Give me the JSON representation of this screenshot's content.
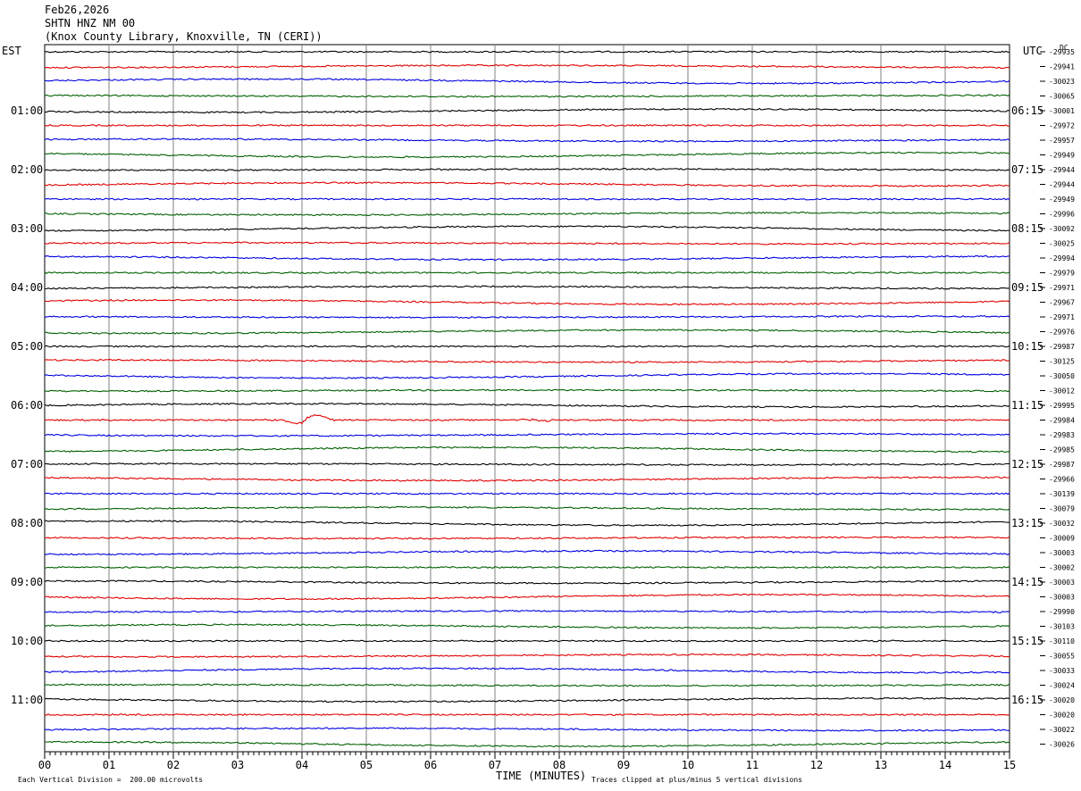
{
  "header": {
    "date": "Feb26,2026",
    "station": "SHTN HNZ NM 00",
    "location": "(Knox County Library, Knoxville, TN (CERI))"
  },
  "left_zone": "EST",
  "right_zone": "UTC",
  "dc_label": "DC",
  "footer": {
    "scale_note": "Each Vertical Division =  200.00 microvolts",
    "xlabel": "TIME (MINUTES)",
    "clip_note": "Traces clipped at plus/minus 5 vertical divisions"
  },
  "chart_data": {
    "type": "line",
    "xlabel": "TIME (MINUTES)",
    "xlim": [
      0,
      15
    ],
    "x_ticks": [
      "00",
      "01",
      "02",
      "03",
      "04",
      "05",
      "06",
      "07",
      "08",
      "09",
      "10",
      "11",
      "12",
      "13",
      "14",
      "15"
    ],
    "trace_colors": [
      "#000000",
      "#e00000",
      "#0000e0",
      "#006000"
    ],
    "left_hour_labels": [
      "01:00",
      "02:00",
      "03:00",
      "04:00",
      "05:00",
      "06:00",
      "07:00",
      "08:00",
      "09:00",
      "10:00",
      "11:00"
    ],
    "right_hour_labels": [
      "06:15",
      "07:15",
      "08:15",
      "09:15",
      "10:15",
      "11:15",
      "12:15",
      "13:15",
      "14:15",
      "15:15",
      "16:15"
    ],
    "dc_offsets": [
      "-29935",
      "-29941",
      "-30023",
      "-30065",
      "-30001",
      "-29972",
      "-29957",
      "-29949",
      "-29944",
      "-29944",
      "-29949",
      "-29996",
      "-30092",
      "-30025",
      "-29994",
      "-29979",
      "-29971",
      "-29967",
      "-29971",
      "-29976",
      "-29987",
      "-30125",
      "-30050",
      "-30012",
      "-29995",
      "-29984",
      "-29983",
      "-29985",
      "-29987",
      "-29966",
      "-30139",
      "-30079",
      "-30032",
      "-30009",
      "-30003",
      "-30002",
      "-30003",
      "-30003",
      "-29990",
      "-30103",
      "-30110",
      "-30055",
      "-30033",
      "-30024",
      "-30020",
      "-30020",
      "-30022",
      "-30026"
    ],
    "events": [
      {
        "trace_index": 25,
        "start_min": 3.7,
        "end_min": 4.5,
        "peak_divisions": 1.0
      },
      {
        "trace_index": 25,
        "start_min": 7.3,
        "end_min": 7.9,
        "peak_divisions": 0.3
      }
    ]
  }
}
